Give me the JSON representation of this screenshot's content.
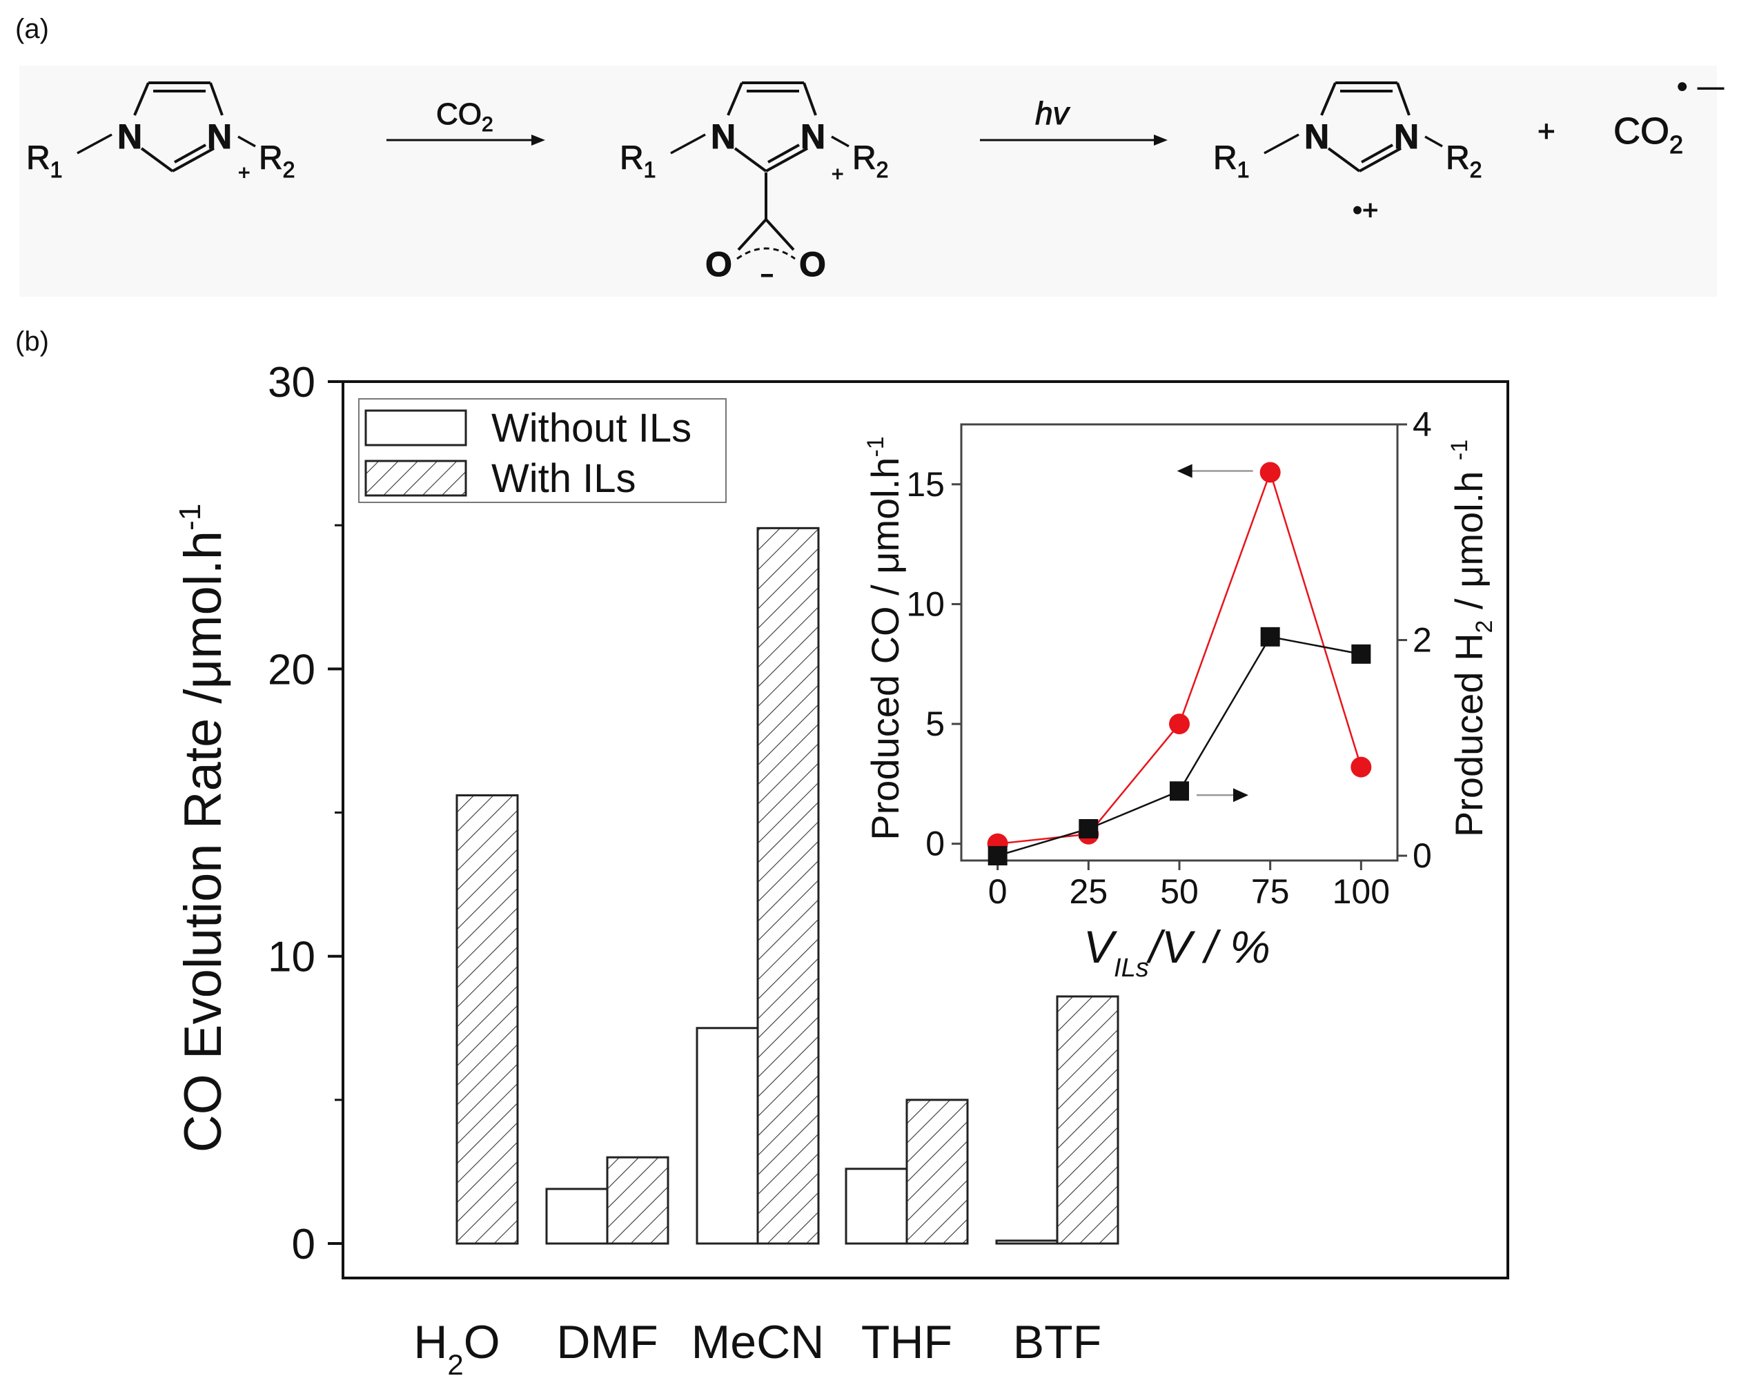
{
  "panel_labels": {
    "a": "(a)",
    "b": "(b)"
  },
  "scheme": {
    "arrow1_label": "CO",
    "arrow1_label_sub": "2",
    "arrow2_label": "hv",
    "n_label": "N",
    "r1": "R",
    "r1_sub": "1",
    "r2": "R",
    "r2_sub": "2",
    "plus_charge": "+",
    "oxygen": "O",
    "minus_charge": "−",
    "radical_cation": "•+",
    "plus_sign": "+",
    "co2_product": "CO",
    "co2_product_sub": "2",
    "radical_anion_dot": "•",
    "radical_anion_minus": "—"
  },
  "chart_data": [
    {
      "type": "bar",
      "title": "",
      "ylabel": "CO Evolution Rate /μmol.h",
      "ylabel_sup": "-1",
      "xlabel": "",
      "ylim": [
        -1.2,
        30
      ],
      "yticks": [
        0,
        10,
        20,
        30
      ],
      "categories": [
        "H2O",
        "DMF",
        "MeCN",
        "THF",
        "BTF"
      ],
      "category_labels": [
        {
          "text": "H",
          "sub": "2",
          "tail": "O"
        },
        {
          "text": "DMF",
          "sub": "",
          "tail": ""
        },
        {
          "text": "MeCN",
          "sub": "",
          "tail": ""
        },
        {
          "text": "THF",
          "sub": "",
          "tail": ""
        },
        {
          "text": "BTF",
          "sub": "",
          "tail": ""
        }
      ],
      "series": [
        {
          "name": "Without ILs",
          "pattern": "open",
          "values": [
            0.0,
            1.9,
            7.5,
            2.6,
            0.1
          ]
        },
        {
          "name": "With ILs",
          "pattern": "hatched",
          "values": [
            15.6,
            3.0,
            24.9,
            5.0,
            8.6
          ]
        }
      ],
      "legend": {
        "position": "top-left",
        "entries": [
          "Without ILs",
          "With ILs"
        ]
      }
    },
    {
      "type": "line",
      "title": "",
      "xlabel": "V",
      "xlabel_sub": "ILs",
      "xlabel_tail": "/V / %",
      "x": [
        0,
        25,
        50,
        75,
        100
      ],
      "xlim": [
        -10,
        110
      ],
      "xticks": [
        0,
        25,
        50,
        75,
        100
      ],
      "left_axis": {
        "label": "Produced CO / μmol.h",
        "label_sup": "-1",
        "ylim": [
          -0.7,
          17.5
        ],
        "ticks": [
          0,
          5,
          10,
          15
        ]
      },
      "right_axis": {
        "label": "Produced H",
        "label_sub": "2",
        "label_tail": " / μmol.h",
        "label_sup": "-1",
        "ylim": [
          -0.0444,
          4
        ],
        "ticks": [
          0,
          2,
          4
        ]
      },
      "series": [
        {
          "name": "Produced CO",
          "axis": "left",
          "color": "#e8141b",
          "marker": "circle",
          "values": [
            0.0,
            0.4,
            5.0,
            15.5,
            3.2
          ]
        },
        {
          "name": "Produced H2",
          "axis": "right",
          "color": "#111111",
          "marker": "square",
          "values": [
            0.0,
            0.25,
            0.6,
            2.03,
            1.87
          ]
        }
      ],
      "annotations": [
        {
          "type": "arrow",
          "direction": "left",
          "target_series": "Produced CO"
        },
        {
          "type": "arrow",
          "direction": "right",
          "target_series": "Produced H2"
        }
      ]
    }
  ]
}
